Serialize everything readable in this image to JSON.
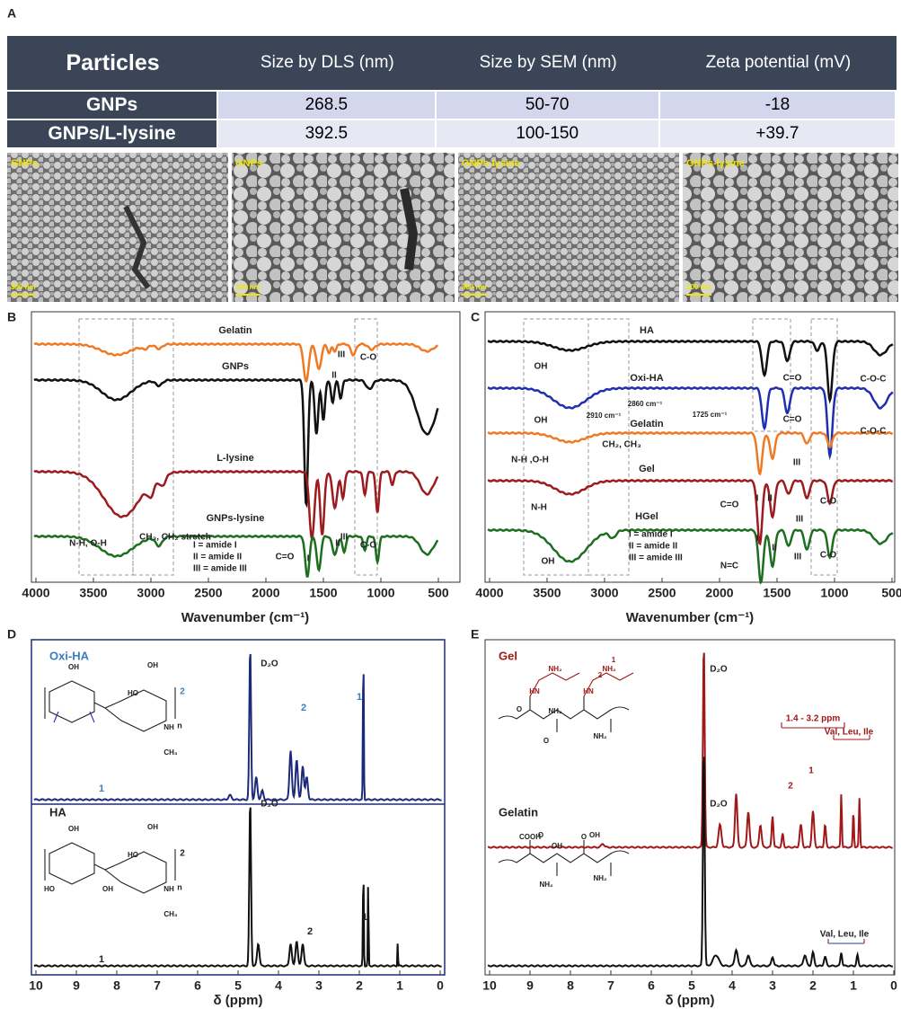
{
  "A": {
    "label": "A",
    "table": {
      "columns": [
        "Particles",
        "Size by DLS (nm)",
        "Size by SEM (nm)",
        "Zeta potential (mV)"
      ],
      "rows": [
        [
          "GNPs",
          "268.5",
          "50-70",
          "-18"
        ],
        [
          "GNPs/L-lysine",
          "392.5",
          "100-150",
          "+39.7"
        ]
      ]
    },
    "sem": [
      {
        "label": "GNPs",
        "scale": "300 nm"
      },
      {
        "label": "GNPs",
        "scale": "100 nm"
      },
      {
        "label": "GNPs-lysine",
        "scale": "300 nm"
      },
      {
        "label": "GNPs-lysine",
        "scale": "100 nm"
      }
    ]
  },
  "B": {
    "label": "B",
    "traces": [
      "Gelatin",
      "GNPs",
      "L-lysine",
      "GNPs-lysine"
    ],
    "annotations": [
      "I",
      "II",
      "III",
      "C-O",
      "N-H, O-H",
      "CH₃, CH₂ stretch",
      "III",
      "C-O",
      "C=O",
      "I",
      "II"
    ],
    "legend": [
      "I = amide I",
      "II = amide II",
      "III = amide III"
    ],
    "x_ticks": [
      "4000",
      "3500",
      "3000",
      "2500",
      "2000",
      "1500",
      "1000",
      "500"
    ],
    "x_label": "Wavenumber (cm⁻¹)"
  },
  "C": {
    "label": "C",
    "traces": [
      "HA",
      "Oxi-HA",
      "Gelatin",
      "Gel",
      "HGel"
    ],
    "annotations": [
      "OH",
      "C=O",
      "C-O-C",
      "2910 cm⁻¹",
      "2860 cm⁻¹",
      "1725 cm⁻¹",
      "OH",
      "C=O",
      "C-O-C",
      "N-H ,O-H",
      "CH₂, CH₃",
      "III",
      "I",
      "II",
      "III",
      "C-O",
      "N-H",
      "C=O",
      "I",
      "II",
      "III",
      "C-O",
      "OH",
      "N=C"
    ],
    "legend": [
      "I = amide I",
      "II = amide II",
      "III = amide III"
    ],
    "x_ticks": [
      "4000",
      "3500",
      "3000",
      "2500",
      "2000",
      "1500",
      "1000",
      "500"
    ],
    "x_label": "Wavenumber (cm⁻¹)"
  },
  "D": {
    "label": "D",
    "spectra": [
      "Oxi-HA",
      "HA"
    ],
    "annotations": [
      "D₂O",
      "1",
      "2",
      "1",
      "D₂O",
      "2",
      "1",
      "1",
      "OH",
      "OH",
      "HO",
      "NH",
      "CH₃",
      "n",
      "2",
      "OH",
      "OH",
      "HO",
      "HO",
      "OH",
      "NH",
      "CH₃",
      "n",
      "2"
    ],
    "x_ticks": [
      "10",
      "9",
      "8",
      "7",
      "6",
      "5",
      "4",
      "3",
      "2",
      "1",
      "0"
    ],
    "x_label": "δ (ppm)"
  },
  "E": {
    "label": "E",
    "spectra": [
      "Gel",
      "Gelatin"
    ],
    "annotations": [
      "D₂O",
      "1.4 - 3.2 ppm",
      "Val, Leu, Ile",
      "1",
      "2",
      "D₂O",
      "Val, Leu, Ile",
      "NH₂",
      "HN",
      "2",
      "NH₂",
      "1",
      "HN",
      "O",
      "NH₂",
      "O",
      "NH₂",
      "COOH",
      "O",
      "OH",
      "NH₂",
      "O",
      "OH",
      "NH₂",
      "COOH"
    ],
    "x_ticks": [
      "10",
      "9",
      "8",
      "7",
      "6",
      "5",
      "4",
      "3",
      "2",
      "1",
      "0"
    ],
    "x_label": "δ (ppm)"
  }
}
